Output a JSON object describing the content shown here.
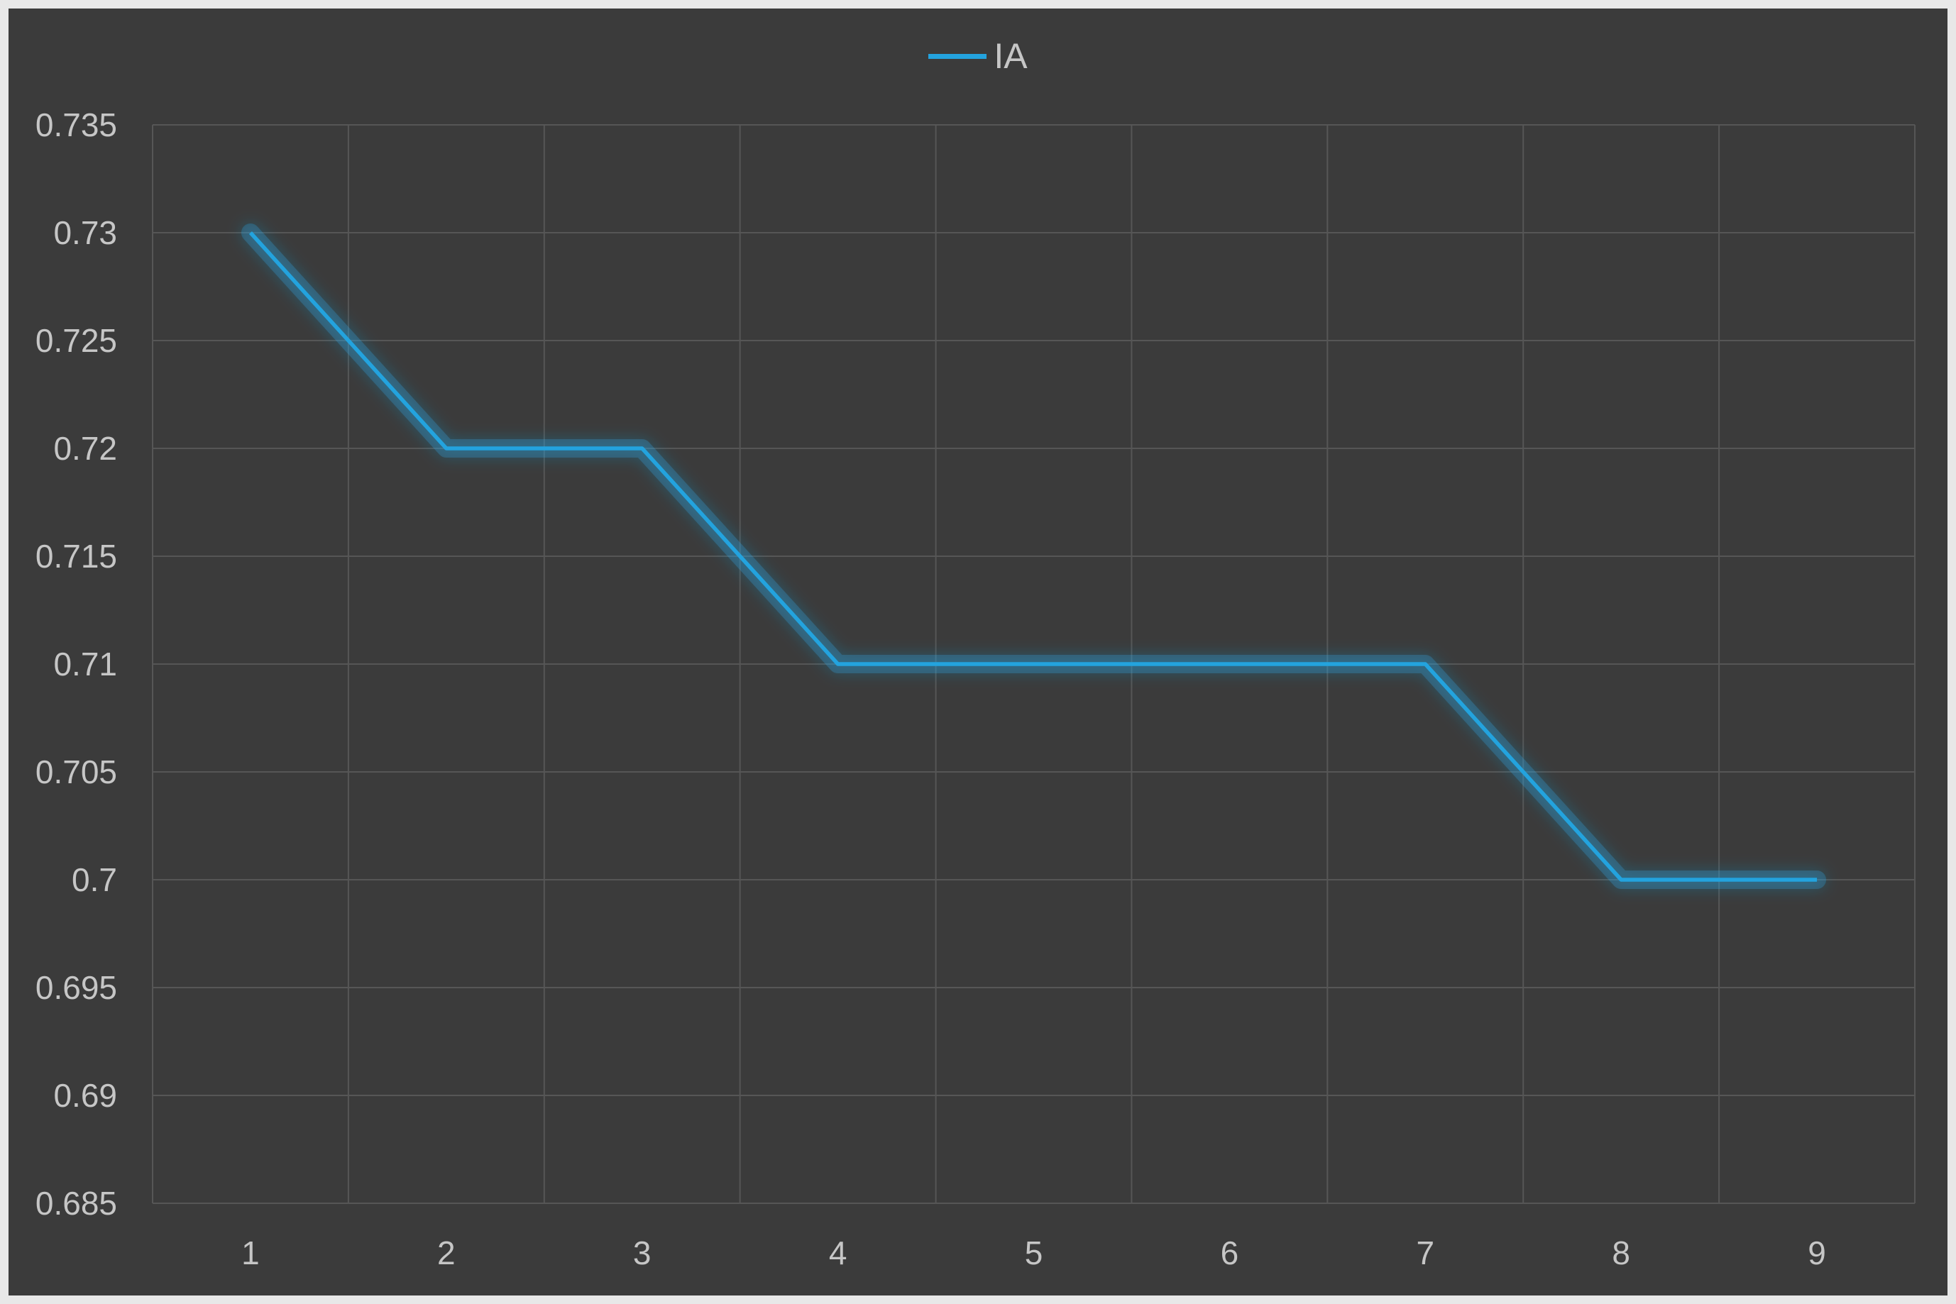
{
  "chart_data": {
    "type": "line",
    "title": "",
    "categories": [
      "1",
      "2",
      "3",
      "4",
      "5",
      "6",
      "7",
      "8",
      "9"
    ],
    "series": [
      {
        "name": "IA",
        "values": [
          0.73,
          0.72,
          0.72,
          0.71,
          0.71,
          0.71,
          0.71,
          0.7,
          0.7
        ]
      }
    ],
    "xlabel": "",
    "ylabel": "",
    "ylim": [
      0.685,
      0.735
    ],
    "y_tick_step": 0.005,
    "y_tick_labels": [
      "0.735",
      "0.73",
      "0.725",
      "0.72",
      "0.715",
      "0.71",
      "0.705",
      "0.7",
      "0.695",
      "0.69",
      "0.685"
    ],
    "grid": true,
    "legend_position": "top-center",
    "line_style": "glow"
  },
  "legend": {
    "label": "IA"
  },
  "colors": {
    "frame": "#e8e8e8",
    "background": "#3b3b3b",
    "gridline": "#565656",
    "tick_label": "#c6c6c6",
    "series_blue": "#23a3de"
  }
}
